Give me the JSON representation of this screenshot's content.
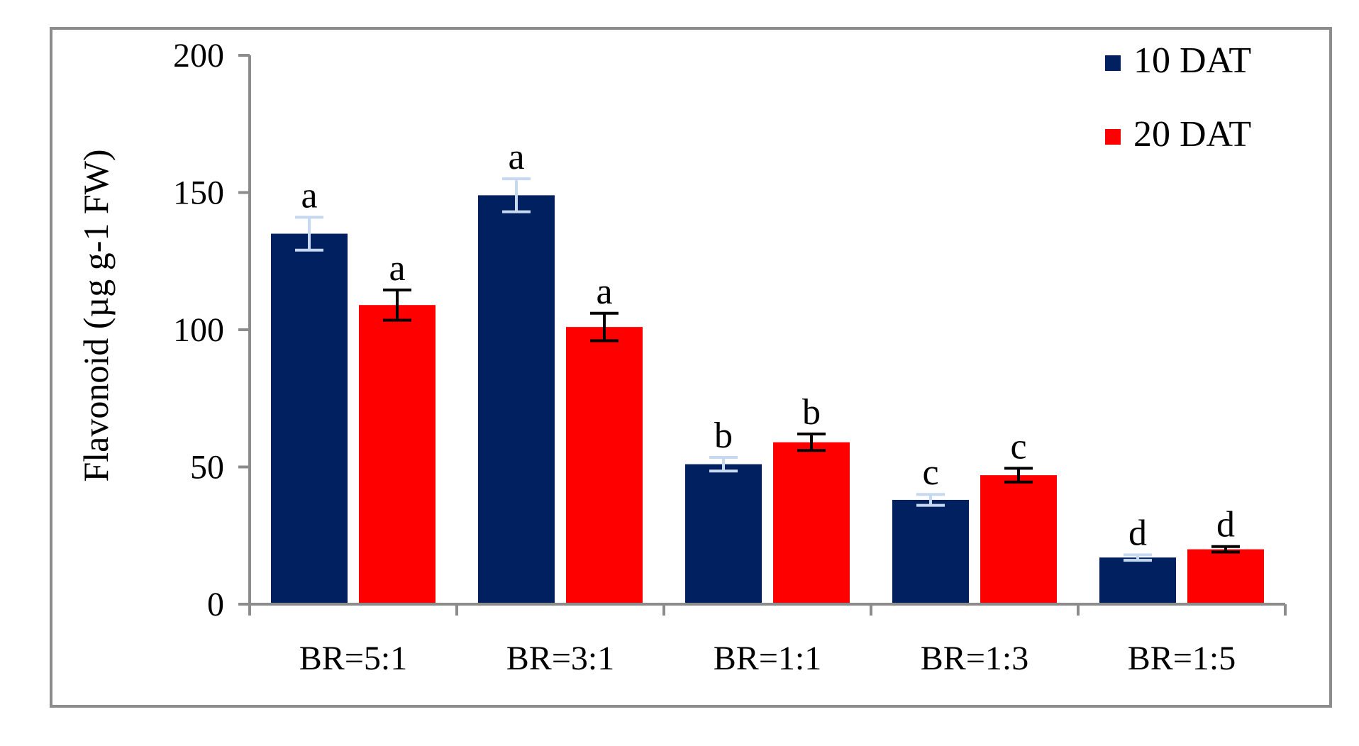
{
  "chart_data": {
    "type": "bar",
    "title": "",
    "xlabel": "",
    "ylabel": "Flavonoid (µg g-1 FW)",
    "ylim": [
      0,
      200
    ],
    "yticks": [
      0,
      50,
      100,
      150,
      200
    ],
    "grid": false,
    "legend_position": "top-right",
    "categories": [
      "BR=5:1",
      "BR=3:1",
      "BR=1:1",
      "BR=1:3",
      "BR=1:5"
    ],
    "series": [
      {
        "name": "10 DAT",
        "color": "#002060",
        "error_color": "#c6d9f1",
        "values": [
          135,
          149,
          51,
          38,
          17
        ],
        "errors": [
          6,
          6,
          2.5,
          2,
          1
        ],
        "labels": [
          "a",
          "a",
          "b",
          "c",
          "d"
        ]
      },
      {
        "name": "20 DAT",
        "color": "#ff0000",
        "error_color": "#000000",
        "values": [
          109,
          101,
          59,
          47,
          20
        ],
        "errors": [
          5.5,
          5,
          3,
          2.5,
          1
        ]
      }
    ],
    "series_20_labels": [
      "a",
      "a",
      "b",
      "c",
      "d"
    ]
  }
}
